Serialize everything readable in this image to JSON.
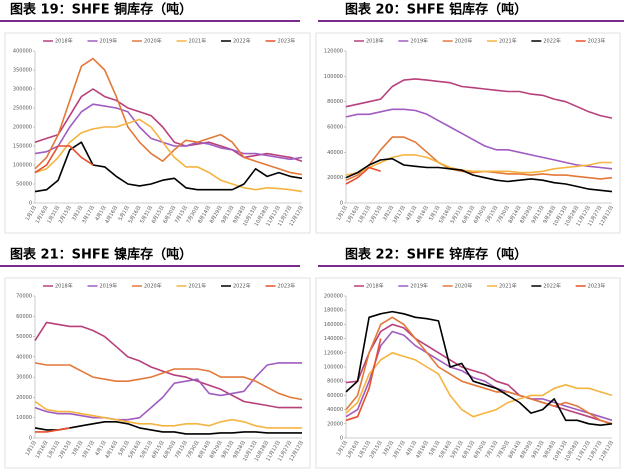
{
  "chart_data": [
    {
      "type": "line",
      "title": "图表 19：SHFE 铜库存（吨）",
      "ylim": [
        0,
        400000
      ],
      "yticks": [
        0,
        50000,
        100000,
        150000,
        200000,
        250000,
        300000,
        350000,
        400000
      ],
      "categories": [
        "1月1日",
        "1月16日",
        "1月31日",
        "2月15日",
        "3月2日",
        "3月17日",
        "4月1日",
        "4月16日",
        "5月1日",
        "5月16日",
        "5月31日",
        "6月15日",
        "6月30日",
        "7月15日",
        "7月30日",
        "8月14日",
        "8月29日",
        "9月13日",
        "9月28日",
        "10月13日",
        "10月28日",
        "11月12日",
        "11月27日",
        "12月12日"
      ],
      "series": [
        {
          "name": "2018年",
          "color": "#b8407a",
          "values": [
            160000,
            170000,
            180000,
            230000,
            280000,
            300000,
            280000,
            270000,
            250000,
            240000,
            230000,
            200000,
            160000,
            150000,
            155000,
            160000,
            150000,
            140000,
            120000,
            125000,
            130000,
            125000,
            120000,
            110000
          ]
        },
        {
          "name": "2019年",
          "color": "#a05cc0",
          "values": [
            130000,
            135000,
            150000,
            200000,
            240000,
            260000,
            255000,
            250000,
            240000,
            200000,
            170000,
            160000,
            150000,
            150000,
            160000,
            155000,
            145000,
            140000,
            130000,
            130000,
            125000,
            120000,
            115000,
            120000
          ]
        },
        {
          "name": "2020年",
          "color": "#e2793a",
          "values": [
            90000,
            120000,
            180000,
            270000,
            360000,
            380000,
            350000,
            280000,
            200000,
            160000,
            130000,
            110000,
            140000,
            165000,
            160000,
            170000,
            180000,
            160000,
            120000,
            110000,
            100000,
            90000,
            80000,
            75000
          ]
        },
        {
          "name": "2021年",
          "color": "#f5b440",
          "values": [
            80000,
            90000,
            120000,
            160000,
            185000,
            195000,
            200000,
            200000,
            210000,
            220000,
            200000,
            160000,
            120000,
            95000,
            95000,
            80000,
            60000,
            50000,
            40000,
            35000,
            40000,
            38000,
            35000,
            30000
          ]
        },
        {
          "name": "2022年",
          "color": "#000000",
          "values": [
            30000,
            35000,
            60000,
            140000,
            160000,
            100000,
            95000,
            70000,
            50000,
            45000,
            50000,
            60000,
            65000,
            40000,
            35000,
            35000,
            35000,
            35000,
            50000,
            90000,
            70000,
            80000,
            70000,
            65000
          ]
        },
        {
          "name": "2023年",
          "color": "#e8502b",
          "values": [
            80000,
            100000,
            150000,
            150000,
            120000,
            100000,
            null,
            null,
            null,
            null,
            null,
            null,
            null,
            null,
            null,
            null,
            null,
            null,
            null,
            null,
            null,
            null,
            null,
            null
          ]
        }
      ]
    },
    {
      "type": "line",
      "title": "图表 20：SHFE 铝库存（吨）",
      "ylim": [
        0,
        120000
      ],
      "yticks": [
        0,
        20000,
        40000,
        60000,
        80000,
        100000,
        120000
      ],
      "categories": [
        "1月1日",
        "1月16日",
        "1月31日",
        "2月15日",
        "3月2日",
        "3月17日",
        "4月1日",
        "4月16日",
        "5月1日",
        "5月16日",
        "5月31日",
        "6月15日",
        "6月30日",
        "7月15日",
        "7月30日",
        "8月14日",
        "8月29日",
        "9月13日",
        "9月28日",
        "10月13日",
        "10月28日",
        "11月12日",
        "11月27日",
        "12月12日"
      ],
      "series": [
        {
          "name": "2018年",
          "color": "#b8407a",
          "values": [
            76000,
            78000,
            80000,
            82000,
            92000,
            97000,
            98000,
            97000,
            96000,
            95000,
            92000,
            91000,
            90000,
            89000,
            88000,
            88000,
            86000,
            85000,
            82000,
            80000,
            76000,
            72000,
            69000,
            67000
          ]
        },
        {
          "name": "2019年",
          "color": "#a05cc0",
          "values": [
            68000,
            70000,
            70000,
            72000,
            74000,
            74000,
            73000,
            70000,
            65000,
            60000,
            55000,
            50000,
            45000,
            42000,
            42000,
            40000,
            38000,
            36000,
            34000,
            32000,
            30000,
            29000,
            28000,
            27000
          ]
        },
        {
          "name": "2020年",
          "color": "#e2793a",
          "values": [
            18000,
            22000,
            30000,
            42000,
            52000,
            52000,
            48000,
            40000,
            32000,
            27000,
            25000,
            24000,
            25000,
            24000,
            23000,
            23000,
            22000,
            23000,
            22000,
            22000,
            21000,
            20000,
            19000,
            20000
          ]
        },
        {
          "name": "2021年",
          "color": "#f5b440",
          "values": [
            22000,
            24000,
            28000,
            32000,
            36000,
            38000,
            38000,
            36000,
            32000,
            28000,
            26000,
            25000,
            25000,
            25000,
            25000,
            24000,
            24000,
            25000,
            27000,
            28000,
            29000,
            30000,
            32000,
            32000
          ]
        },
        {
          "name": "2022年",
          "color": "#000000",
          "values": [
            20000,
            24000,
            30000,
            34000,
            35000,
            30000,
            29000,
            28000,
            28000,
            27000,
            26000,
            22000,
            20000,
            18000,
            17000,
            18000,
            19000,
            18000,
            16000,
            15000,
            13000,
            11000,
            10000,
            9000
          ]
        },
        {
          "name": "2023年",
          "color": "#e8502b",
          "values": [
            15000,
            20000,
            28000,
            25000,
            null,
            null,
            null,
            null,
            null,
            null,
            null,
            null,
            null,
            null,
            null,
            null,
            null,
            null,
            null,
            null,
            null,
            null,
            null,
            null
          ]
        }
      ]
    },
    {
      "type": "line",
      "title": "图表 21：SHFE 镍库存（吨）",
      "ylim": [
        0,
        70000
      ],
      "yticks": [
        0,
        10000,
        20000,
        30000,
        40000,
        50000,
        60000,
        70000
      ],
      "categories": [
        "1月1日",
        "1月16日",
        "1月31日",
        "2月15日",
        "3月2日",
        "3月17日",
        "4月1日",
        "4月16日",
        "5月1日",
        "5月16日",
        "5月31日",
        "6月15日",
        "6月30日",
        "7月15日",
        "7月30日",
        "8月14日",
        "8月29日",
        "9月13日",
        "9月28日",
        "10月13日",
        "10月28日",
        "11月12日",
        "11月27日",
        "12月12日"
      ],
      "series": [
        {
          "name": "2018年",
          "color": "#b8407a",
          "values": [
            48000,
            57000,
            56000,
            55000,
            55000,
            53000,
            50000,
            45000,
            40000,
            38000,
            35000,
            33000,
            31000,
            30000,
            28000,
            26000,
            24000,
            21000,
            18000,
            17000,
            16000,
            15000,
            15000,
            15000
          ]
        },
        {
          "name": "2019年",
          "color": "#a05cc0",
          "values": [
            15000,
            13000,
            12000,
            12000,
            11000,
            10000,
            10000,
            9000,
            9000,
            10000,
            15000,
            20000,
            27000,
            28000,
            29000,
            22000,
            21000,
            22000,
            23000,
            30000,
            36000,
            37000,
            37000,
            37000
          ]
        },
        {
          "name": "2020年",
          "color": "#e2793a",
          "values": [
            37000,
            36000,
            36000,
            36000,
            33000,
            30000,
            29000,
            28000,
            28000,
            29000,
            30000,
            32000,
            34000,
            34000,
            34000,
            33000,
            30000,
            30000,
            30000,
            28000,
            25000,
            22000,
            20000,
            19000
          ]
        },
        {
          "name": "2021年",
          "color": "#f5b440",
          "values": [
            18000,
            14000,
            13000,
            13000,
            12000,
            11000,
            10000,
            9000,
            8000,
            7000,
            7000,
            6000,
            6000,
            7000,
            7000,
            6000,
            8000,
            9000,
            8000,
            6000,
            5000,
            5000,
            5000,
            5000
          ]
        },
        {
          "name": "2022年",
          "color": "#000000",
          "values": [
            5000,
            4000,
            4000,
            5000,
            6000,
            7000,
            8000,
            8000,
            7000,
            5000,
            4000,
            3000,
            3000,
            2000,
            2000,
            2000,
            2500,
            2500,
            3000,
            3000,
            2500,
            2500,
            2500,
            2500
          ]
        },
        {
          "name": "2023年",
          "color": "#e8502b",
          "values": [
            3000,
            3000,
            4000,
            5000,
            null,
            null,
            null,
            null,
            null,
            null,
            null,
            null,
            null,
            null,
            null,
            null,
            null,
            null,
            null,
            null,
            null,
            null,
            null,
            null
          ]
        }
      ]
    },
    {
      "type": "line",
      "title": "图表 22：SHFE 锌库存（吨）",
      "ylim": [
        0,
        200000
      ],
      "yticks": [
        0,
        20000,
        40000,
        60000,
        80000,
        100000,
        120000,
        140000,
        160000,
        180000,
        200000
      ],
      "categories": [
        "1月1日",
        "1月16日",
        "1月31日",
        "2月15日",
        "3月2日",
        "3月17日",
        "4月1日",
        "4月16日",
        "5月1日",
        "5月16日",
        "5月31日",
        "6月15日",
        "6月30日",
        "7月15日",
        "7月30日",
        "8月14日",
        "8月29日",
        "9月13日",
        "9月28日",
        "10月13日",
        "10月28日",
        "11月12日",
        "11月27日",
        "12月12日"
      ],
      "series": [
        {
          "name": "2018年",
          "color": "#b8407a",
          "values": [
            78000,
            80000,
            120000,
            150000,
            160000,
            155000,
            140000,
            130000,
            120000,
            110000,
            100000,
            95000,
            90000,
            80000,
            75000,
            60000,
            55000,
            50000,
            45000,
            40000,
            35000,
            30000,
            25000,
            20000
          ]
        },
        {
          "name": "2019年",
          "color": "#a05cc0",
          "values": [
            30000,
            40000,
            80000,
            130000,
            150000,
            145000,
            130000,
            120000,
            110000,
            100000,
            95000,
            85000,
            80000,
            70000,
            65000,
            60000,
            55000,
            55000,
            50000,
            45000,
            40000,
            35000,
            30000,
            25000
          ]
        },
        {
          "name": "2020年",
          "color": "#e2793a",
          "values": [
            40000,
            60000,
            120000,
            160000,
            170000,
            160000,
            140000,
            120000,
            100000,
            90000,
            80000,
            75000,
            70000,
            65000,
            65000,
            60000,
            55000,
            50000,
            45000,
            50000,
            45000,
            35000,
            25000,
            20000
          ]
        },
        {
          "name": "2021年",
          "color": "#f5b440",
          "values": [
            35000,
            50000,
            90000,
            110000,
            120000,
            115000,
            110000,
            100000,
            90000,
            60000,
            40000,
            30000,
            35000,
            40000,
            50000,
            55000,
            60000,
            60000,
            70000,
            75000,
            70000,
            70000,
            65000,
            60000
          ]
        },
        {
          "name": "2022年",
          "color": "#000000",
          "values": [
            65000,
            80000,
            170000,
            175000,
            178000,
            175000,
            170000,
            168000,
            165000,
            100000,
            105000,
            80000,
            75000,
            70000,
            60000,
            50000,
            35000,
            40000,
            55000,
            25000,
            25000,
            20000,
            18000,
            20000
          ]
        },
        {
          "name": "2023年",
          "color": "#e8502b",
          "values": [
            25000,
            30000,
            70000,
            140000,
            null,
            null,
            null,
            null,
            null,
            null,
            null,
            null,
            null,
            null,
            null,
            null,
            null,
            null,
            null,
            null,
            null,
            null,
            null,
            null
          ]
        }
      ]
    }
  ]
}
